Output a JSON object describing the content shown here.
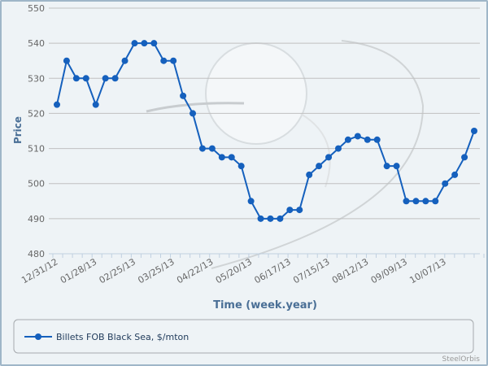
{
  "chart_data": {
    "type": "line",
    "title": "",
    "xlabel": "Time (week.year)",
    "ylabel": "Price",
    "ylim": [
      480,
      550
    ],
    "yticks": [
      480,
      490,
      500,
      510,
      520,
      530,
      540,
      550
    ],
    "grid": true,
    "legend_position": "bottom",
    "x": [
      "12/31/12",
      "01/07/13",
      "01/14/13",
      "01/21/13",
      "01/28/13",
      "02/04/13",
      "02/11/13",
      "02/18/13",
      "02/25/13",
      "03/04/13",
      "03/11/13",
      "03/18/13",
      "03/25/13",
      "04/01/13",
      "04/08/13",
      "04/15/13",
      "04/22/13",
      "04/29/13",
      "05/06/13",
      "05/13/13",
      "05/20/13",
      "05/27/13",
      "06/03/13",
      "06/10/13",
      "06/17/13",
      "06/24/13",
      "07/01/13",
      "07/08/13",
      "07/15/13",
      "07/22/13",
      "07/29/13",
      "08/05/13",
      "08/12/13",
      "08/19/13",
      "08/26/13",
      "09/02/13",
      "09/09/13",
      "09/16/13",
      "09/23/13",
      "09/30/13",
      "10/07/13",
      "10/14/13",
      "10/21/13",
      "10/28/13"
    ],
    "xtick_labels": [
      "12/31/12",
      "01/28/13",
      "02/25/13",
      "03/25/13",
      "04/22/13",
      "05/20/13",
      "06/17/13",
      "07/15/13",
      "08/12/13",
      "09/09/13",
      "10/07/13"
    ],
    "series": [
      {
        "name": "Billets FOB Black Sea, $/mton",
        "color": "#1560bd",
        "values": [
          522.5,
          535,
          530,
          530,
          522.5,
          530,
          530,
          535,
          540,
          540,
          540,
          535,
          535,
          525,
          520,
          510,
          510,
          507.5,
          507.5,
          505,
          495,
          490,
          490,
          490,
          492.5,
          492.5,
          502.5,
          505,
          507.5,
          510,
          512.5,
          513.5,
          512.5,
          512.5,
          505,
          505,
          495,
          495,
          495,
          495,
          500,
          502.5,
          507.5,
          515
        ]
      }
    ]
  },
  "credit": "SteelOrbis"
}
